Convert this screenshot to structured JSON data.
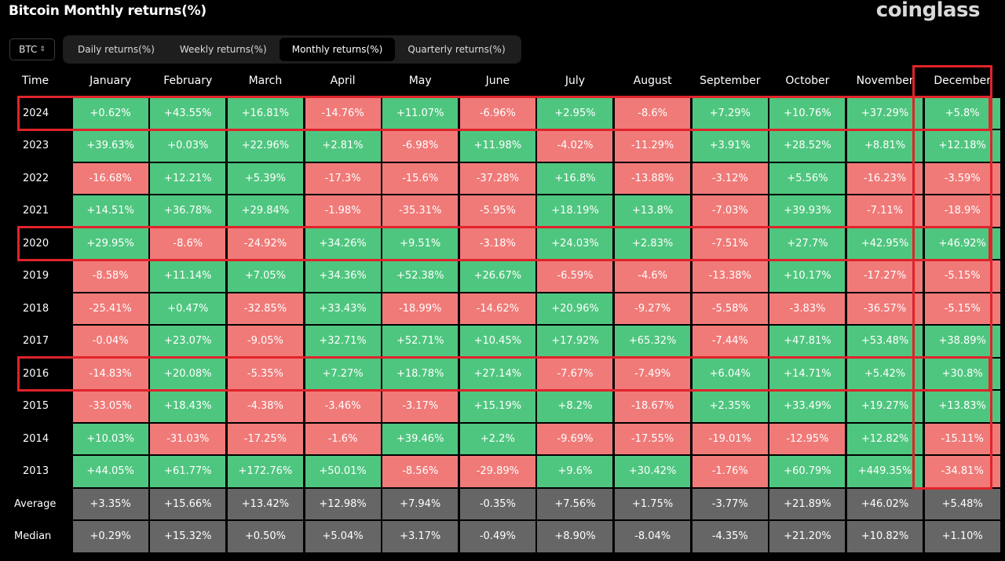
{
  "title": "Bitcoin Monthly returns(%)",
  "brand": "coinglass",
  "asset_select": {
    "value": "BTC",
    "icon": "updown-chevron-icon"
  },
  "tabs": [
    {
      "label": "Daily returns(%)",
      "active": false
    },
    {
      "label": "Weekly returns(%)",
      "active": false
    },
    {
      "label": "Monthly returns(%)",
      "active": true
    },
    {
      "label": "Quarterly returns(%)",
      "active": false
    }
  ],
  "table": {
    "time_header": "Time",
    "months": [
      "January",
      "February",
      "March",
      "April",
      "May",
      "June",
      "July",
      "August",
      "September",
      "October",
      "November",
      "December"
    ],
    "rows": [
      {
        "year": "2024",
        "values": [
          "+0.62%",
          "+43.55%",
          "+16.81%",
          "-14.76%",
          "+11.07%",
          "-6.96%",
          "+2.95%",
          "-8.6%",
          "+7.29%",
          "+10.76%",
          "+37.29%",
          "+5.8%"
        ]
      },
      {
        "year": "2023",
        "values": [
          "+39.63%",
          "+0.03%",
          "+22.96%",
          "+2.81%",
          "-6.98%",
          "+11.98%",
          "-4.02%",
          "-11.29%",
          "+3.91%",
          "+28.52%",
          "+8.81%",
          "+12.18%"
        ]
      },
      {
        "year": "2022",
        "values": [
          "-16.68%",
          "+12.21%",
          "+5.39%",
          "-17.3%",
          "-15.6%",
          "-37.28%",
          "+16.8%",
          "-13.88%",
          "-3.12%",
          "+5.56%",
          "-16.23%",
          "-3.59%"
        ]
      },
      {
        "year": "2021",
        "values": [
          "+14.51%",
          "+36.78%",
          "+29.84%",
          "-1.98%",
          "-35.31%",
          "-5.95%",
          "+18.19%",
          "+13.8%",
          "-7.03%",
          "+39.93%",
          "-7.11%",
          "-18.9%"
        ]
      },
      {
        "year": "2020",
        "values": [
          "+29.95%",
          "-8.6%",
          "-24.92%",
          "+34.26%",
          "+9.51%",
          "-3.18%",
          "+24.03%",
          "+2.83%",
          "-7.51%",
          "+27.7%",
          "+42.95%",
          "+46.92%"
        ]
      },
      {
        "year": "2019",
        "values": [
          "-8.58%",
          "+11.14%",
          "+7.05%",
          "+34.36%",
          "+52.38%",
          "+26.67%",
          "-6.59%",
          "-4.6%",
          "-13.38%",
          "+10.17%",
          "-17.27%",
          "-5.15%"
        ]
      },
      {
        "year": "2018",
        "values": [
          "-25.41%",
          "+0.47%",
          "-32.85%",
          "+33.43%",
          "-18.99%",
          "-14.62%",
          "+20.96%",
          "-9.27%",
          "-5.58%",
          "-3.83%",
          "-36.57%",
          "-5.15%"
        ]
      },
      {
        "year": "2017",
        "values": [
          "-0.04%",
          "+23.07%",
          "-9.05%",
          "+32.71%",
          "+52.71%",
          "+10.45%",
          "+17.92%",
          "+65.32%",
          "-7.44%",
          "+47.81%",
          "+53.48%",
          "+38.89%"
        ]
      },
      {
        "year": "2016",
        "values": [
          "-14.83%",
          "+20.08%",
          "-5.35%",
          "+7.27%",
          "+18.78%",
          "+27.14%",
          "-7.67%",
          "-7.49%",
          "+6.04%",
          "+14.71%",
          "+5.42%",
          "+30.8%"
        ]
      },
      {
        "year": "2015",
        "values": [
          "-33.05%",
          "+18.43%",
          "-4.38%",
          "-3.46%",
          "-3.17%",
          "+15.19%",
          "+8.2%",
          "-18.67%",
          "+2.35%",
          "+33.49%",
          "+19.27%",
          "+13.83%"
        ]
      },
      {
        "year": "2014",
        "values": [
          "+10.03%",
          "-31.03%",
          "-17.25%",
          "-1.6%",
          "+39.46%",
          "+2.2%",
          "-9.69%",
          "-17.55%",
          "-19.01%",
          "-12.95%",
          "+12.82%",
          "-15.11%"
        ]
      },
      {
        "year": "2013",
        "values": [
          "+44.05%",
          "+61.77%",
          "+172.76%",
          "+50.01%",
          "-8.56%",
          "-29.89%",
          "+9.6%",
          "+30.42%",
          "-1.76%",
          "+60.79%",
          "+449.35%",
          "-34.81%"
        ]
      }
    ],
    "average": {
      "label": "Average",
      "values": [
        "+3.35%",
        "+15.66%",
        "+13.42%",
        "+12.98%",
        "+7.94%",
        "-0.35%",
        "+7.56%",
        "+1.75%",
        "-3.77%",
        "+21.89%",
        "+46.02%",
        "+5.48%"
      ]
    },
    "median": {
      "label": "Median",
      "values": [
        "+0.29%",
        "+15.32%",
        "+0.50%",
        "+5.04%",
        "+3.17%",
        "-0.49%",
        "+8.90%",
        "-8.04%",
        "-4.35%",
        "+21.20%",
        "+10.82%",
        "+1.10%"
      ]
    }
  },
  "highlights": {
    "rows": [
      "2024",
      "2020",
      "2016"
    ],
    "column": "December"
  },
  "colors": {
    "positive": "#4fc67f",
    "negative": "#f07a78",
    "stat": "#666666",
    "highlight": "#e0232b",
    "background": "#000000"
  }
}
